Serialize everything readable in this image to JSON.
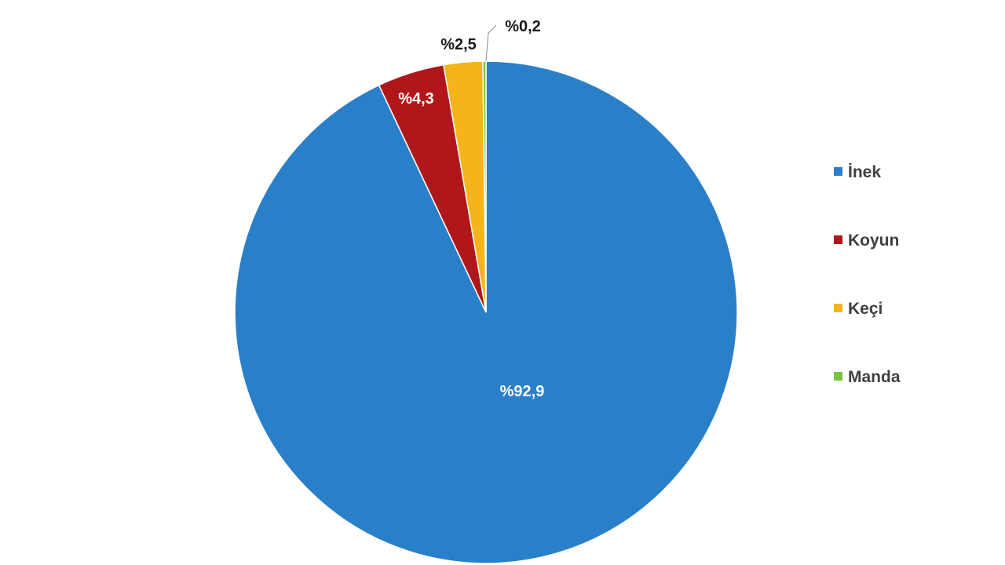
{
  "chart_data": {
    "type": "pie",
    "categories": [
      "İnek",
      "Koyun",
      "Keçi",
      "Manda"
    ],
    "values": [
      92.9,
      4.3,
      2.5,
      0.2
    ],
    "data_labels": [
      "%92,9",
      "%4,3",
      "%2,5",
      "%0,2"
    ],
    "colors": [
      "#2A7FC9",
      "#B0171A",
      "#F5B41C",
      "#7CC242"
    ],
    "legend_position": "right"
  }
}
